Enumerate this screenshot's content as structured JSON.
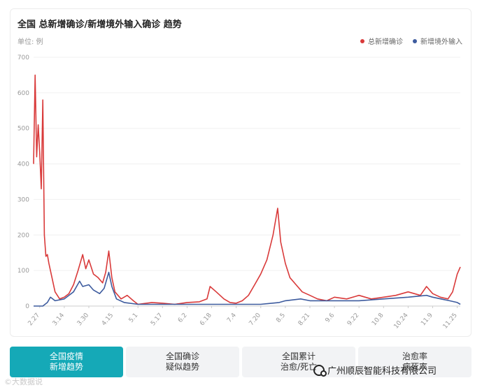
{
  "card": {
    "title": "全国 总新增确诊/新增境外输入确诊 趋势",
    "unit": "单位: 例"
  },
  "legend": [
    {
      "label": "总新增确诊",
      "color": "#d93a3a"
    },
    {
      "label": "新增境外输入",
      "color": "#3d5b9e"
    }
  ],
  "tabs": [
    {
      "line1": "全国疫情",
      "line2": "新增趋势",
      "active": true
    },
    {
      "line1": "全国确诊",
      "line2": "疑似趋势",
      "active": false
    },
    {
      "line1": "全国累计",
      "line2": "治愈/死亡",
      "active": false
    },
    {
      "line1": "治愈率",
      "line2": "病死率",
      "active": false
    }
  ],
  "watermarks": {
    "left": "©大数据说",
    "right": "广州顺辰智能科技有限公司"
  },
  "chart_data": {
    "type": "line",
    "title": "全国 总新增确诊/新增境外输入确诊 趋势",
    "ylabel": "单位: 例",
    "ylim": [
      0,
      700
    ],
    "yticks": [
      0,
      100,
      200,
      300,
      400,
      500,
      600,
      700
    ],
    "grid": true,
    "legend_position": "top-right",
    "xticks": [
      "2.27",
      "3.14",
      "3.30",
      "4.15",
      "5.1",
      "5.17",
      "6.2",
      "6.18",
      "7.4",
      "7.20",
      "8.5",
      "8.21",
      "9.6",
      "9.22",
      "10.8",
      "10.24",
      "11.9",
      "11.25"
    ],
    "x_start": "2020-02-23",
    "series": [
      {
        "name": "总新增确诊",
        "color": "#d93a3a",
        "points": [
          [
            "2020-02-23",
            400
          ],
          [
            "2020-02-24",
            650
          ],
          [
            "2020-02-25",
            420
          ],
          [
            "2020-02-26",
            510
          ],
          [
            "2020-02-27",
            430
          ],
          [
            "2020-02-28",
            330
          ],
          [
            "2020-02-29",
            580
          ],
          [
            "2020-03-01",
            200
          ],
          [
            "2020-03-02",
            140
          ],
          [
            "2020-03-03",
            145
          ],
          [
            "2020-03-04",
            120
          ],
          [
            "2020-03-06",
            80
          ],
          [
            "2020-03-08",
            40
          ],
          [
            "2020-03-11",
            20
          ],
          [
            "2020-03-14",
            25
          ],
          [
            "2020-03-17",
            35
          ],
          [
            "2020-03-20",
            60
          ],
          [
            "2020-03-23",
            100
          ],
          [
            "2020-03-26",
            145
          ],
          [
            "2020-03-28",
            105
          ],
          [
            "2020-03-30",
            130
          ],
          [
            "2020-04-02",
            90
          ],
          [
            "2020-04-05",
            80
          ],
          [
            "2020-04-08",
            65
          ],
          [
            "2020-04-10",
            95
          ],
          [
            "2020-04-12",
            155
          ],
          [
            "2020-04-14",
            80
          ],
          [
            "2020-04-16",
            40
          ],
          [
            "2020-04-20",
            20
          ],
          [
            "2020-04-24",
            30
          ],
          [
            "2020-04-28",
            15
          ],
          [
            "2020-05-01",
            5
          ],
          [
            "2020-05-10",
            10
          ],
          [
            "2020-05-17",
            8
          ],
          [
            "2020-05-25",
            5
          ],
          [
            "2020-06-02",
            10
          ],
          [
            "2020-06-10",
            12
          ],
          [
            "2020-06-15",
            20
          ],
          [
            "2020-06-17",
            55
          ],
          [
            "2020-06-21",
            40
          ],
          [
            "2020-06-26",
            20
          ],
          [
            "2020-06-30",
            10
          ],
          [
            "2020-07-04",
            8
          ],
          [
            "2020-07-08",
            15
          ],
          [
            "2020-07-12",
            30
          ],
          [
            "2020-07-16",
            60
          ],
          [
            "2020-07-20",
            90
          ],
          [
            "2020-07-24",
            130
          ],
          [
            "2020-07-28",
            200
          ],
          [
            "2020-07-31",
            275
          ],
          [
            "2020-08-02",
            180
          ],
          [
            "2020-08-05",
            120
          ],
          [
            "2020-08-08",
            80
          ],
          [
            "2020-08-12",
            60
          ],
          [
            "2020-08-16",
            40
          ],
          [
            "2020-08-21",
            30
          ],
          [
            "2020-08-26",
            20
          ],
          [
            "2020-09-01",
            15
          ],
          [
            "2020-09-06",
            25
          ],
          [
            "2020-09-14",
            20
          ],
          [
            "2020-09-22",
            30
          ],
          [
            "2020-09-30",
            20
          ],
          [
            "2020-10-08",
            25
          ],
          [
            "2020-10-16",
            30
          ],
          [
            "2020-10-24",
            40
          ],
          [
            "2020-11-01",
            30
          ],
          [
            "2020-11-05",
            55
          ],
          [
            "2020-11-09",
            35
          ],
          [
            "2020-11-14",
            25
          ],
          [
            "2020-11-19",
            20
          ],
          [
            "2020-11-22",
            40
          ],
          [
            "2020-11-25",
            90
          ],
          [
            "2020-11-27",
            110
          ]
        ]
      },
      {
        "name": "新增境外输入",
        "color": "#3d5b9e",
        "points": [
          [
            "2020-02-23",
            0
          ],
          [
            "2020-02-29",
            0
          ],
          [
            "2020-03-03",
            10
          ],
          [
            "2020-03-05",
            25
          ],
          [
            "2020-03-08",
            15
          ],
          [
            "2020-03-14",
            20
          ],
          [
            "2020-03-17",
            30
          ],
          [
            "2020-03-20",
            40
          ],
          [
            "2020-03-24",
            70
          ],
          [
            "2020-03-26",
            55
          ],
          [
            "2020-03-30",
            60
          ],
          [
            "2020-04-02",
            45
          ],
          [
            "2020-04-06",
            35
          ],
          [
            "2020-04-09",
            50
          ],
          [
            "2020-04-12",
            95
          ],
          [
            "2020-04-14",
            55
          ],
          [
            "2020-04-17",
            20
          ],
          [
            "2020-04-22",
            10
          ],
          [
            "2020-05-01",
            5
          ],
          [
            "2020-05-17",
            5
          ],
          [
            "2020-06-02",
            5
          ],
          [
            "2020-06-18",
            5
          ],
          [
            "2020-07-04",
            5
          ],
          [
            "2020-07-20",
            5
          ],
          [
            "2020-08-01",
            10
          ],
          [
            "2020-08-05",
            15
          ],
          [
            "2020-08-15",
            20
          ],
          [
            "2020-08-21",
            15
          ],
          [
            "2020-09-06",
            15
          ],
          [
            "2020-09-22",
            15
          ],
          [
            "2020-10-08",
            20
          ],
          [
            "2020-10-24",
            25
          ],
          [
            "2020-11-05",
            30
          ],
          [
            "2020-11-09",
            25
          ],
          [
            "2020-11-20",
            15
          ],
          [
            "2020-11-25",
            10
          ],
          [
            "2020-11-27",
            5
          ]
        ]
      }
    ]
  }
}
